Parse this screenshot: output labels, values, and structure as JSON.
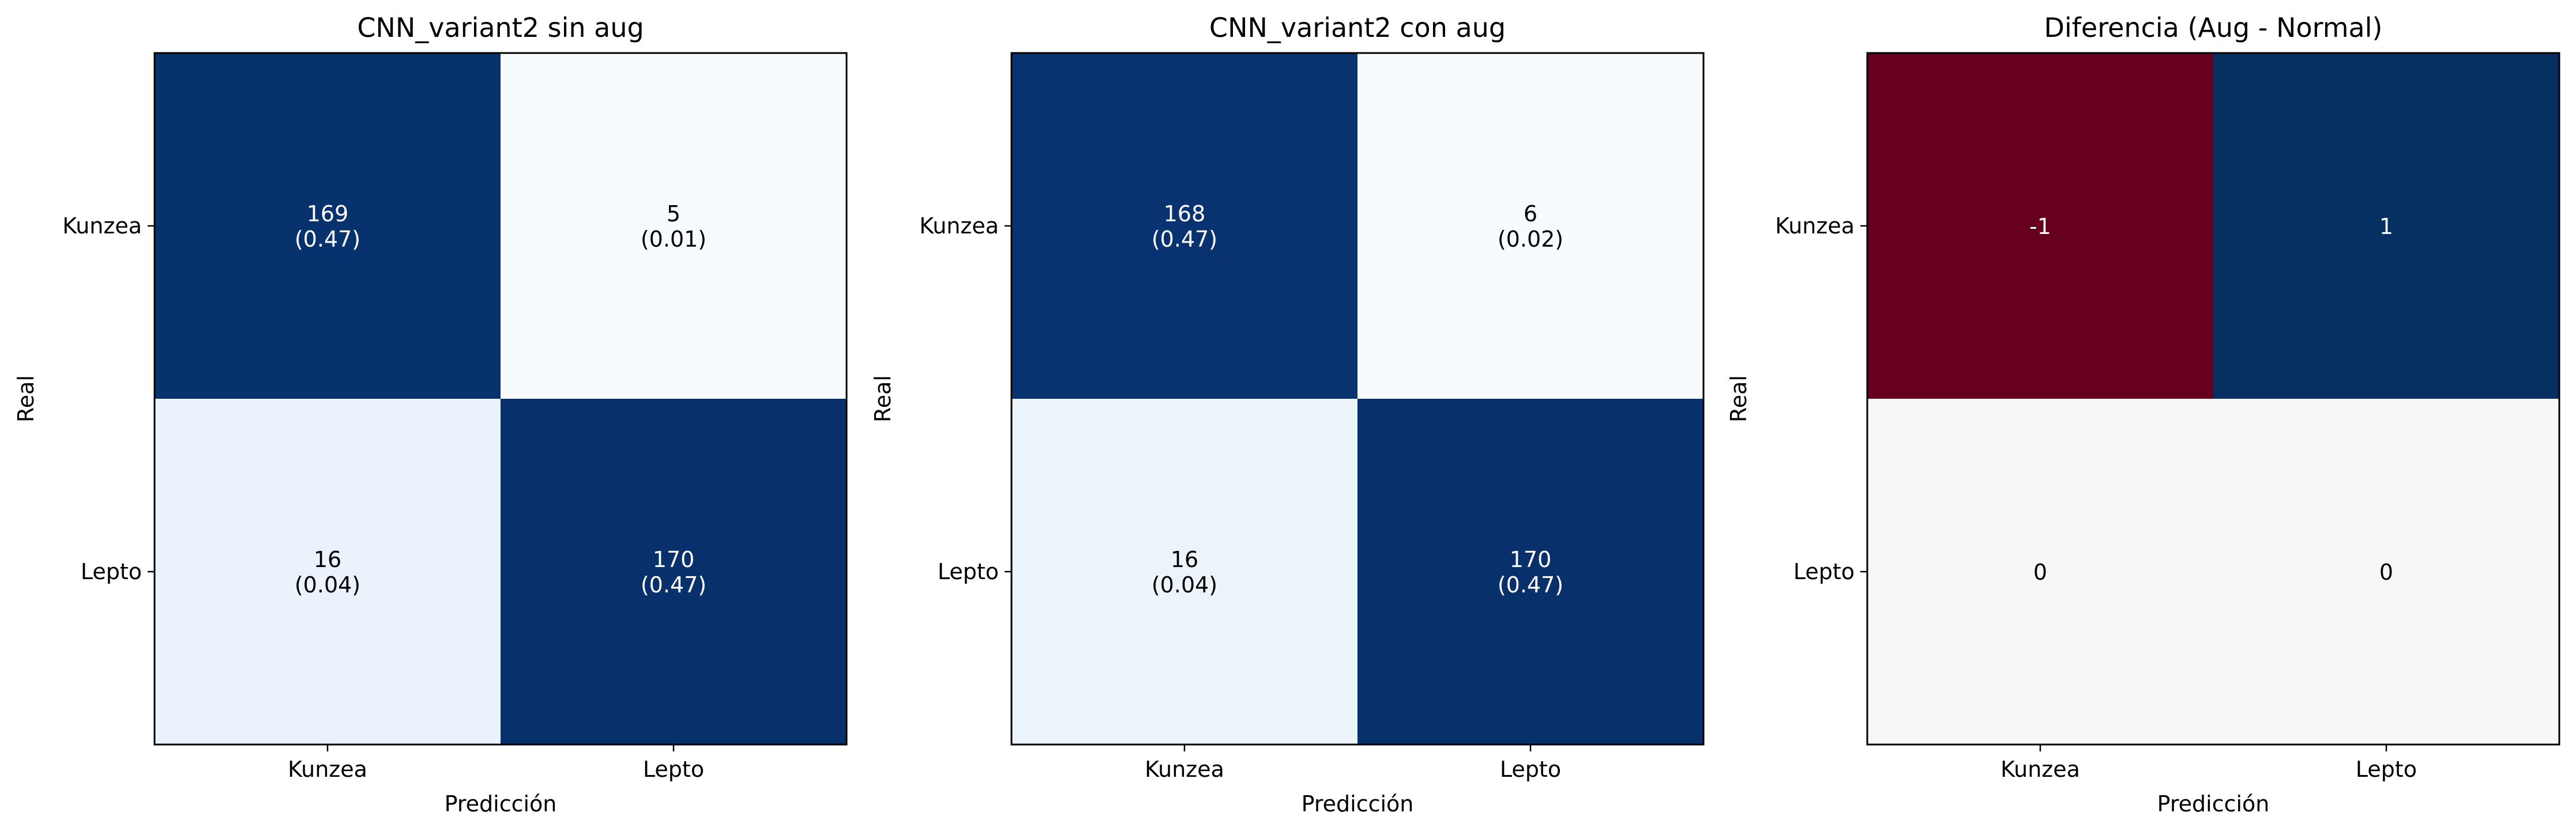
{
  "chart_data": [
    {
      "type": "heatmap",
      "title": "CNN_variant2 sin aug",
      "xlabel": "Predicción",
      "ylabel": "Real",
      "x_categories": [
        "Kunzea",
        "Lepto"
      ],
      "y_categories": [
        "Kunzea",
        "Lepto"
      ],
      "values": [
        [
          169,
          5
        ],
        [
          16,
          170
        ]
      ],
      "proportions": [
        [
          "(0.47)",
          "(0.01)"
        ],
        [
          "(0.04)",
          "(0.47)"
        ]
      ],
      "colormap": "Blues"
    },
    {
      "type": "heatmap",
      "title": "CNN_variant2 con aug",
      "xlabel": "Predicción",
      "ylabel": "Real",
      "x_categories": [
        "Kunzea",
        "Lepto"
      ],
      "y_categories": [
        "Kunzea",
        "Lepto"
      ],
      "values": [
        [
          168,
          6
        ],
        [
          16,
          170
        ]
      ],
      "proportions": [
        [
          "(0.47)",
          "(0.02)"
        ],
        [
          "(0.04)",
          "(0.47)"
        ]
      ],
      "colormap": "Blues"
    },
    {
      "type": "heatmap",
      "title": "Diferencia (Aug - Normal)",
      "xlabel": "Predicción",
      "ylabel": "Real",
      "x_categories": [
        "Kunzea",
        "Lepto"
      ],
      "y_categories": [
        "Kunzea",
        "Lepto"
      ],
      "values": [
        [
          -1,
          1
        ],
        [
          0,
          0
        ]
      ],
      "colormap": "RdBu"
    }
  ]
}
